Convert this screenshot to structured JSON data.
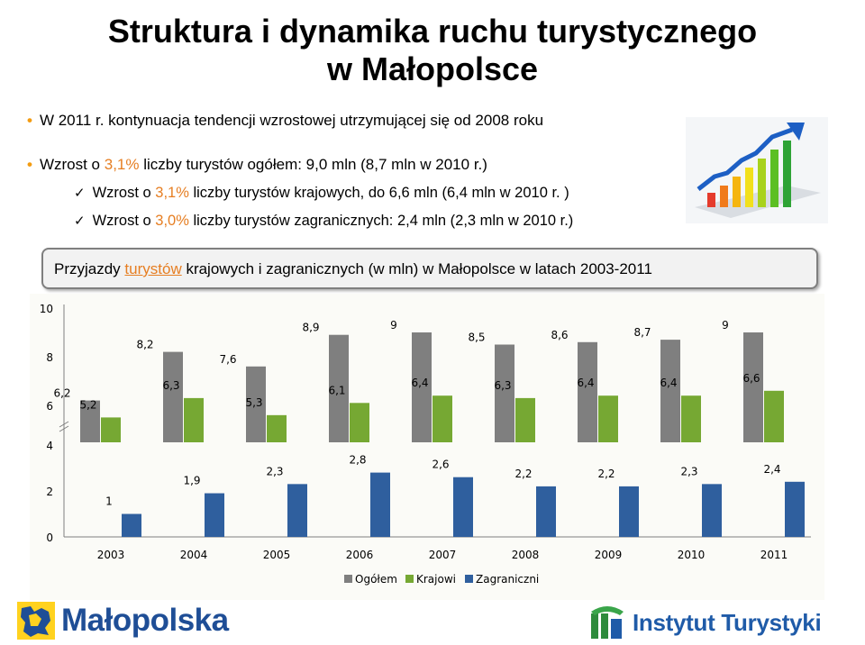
{
  "slide": {
    "title_line1": "Struktura i dynamika ruchu turystycznego",
    "title_line2": "w Małopolsce",
    "bullets": [
      {
        "text": "W 2011 r. kontynuacja tendencji wzrostowej utrzymującej się od 2008 roku"
      },
      {
        "pre": "Wzrost o ",
        "pct": "3,1%",
        "post": " liczby turystów ogółem: 9,0 mln (8,7 mln w 2010 r.)"
      }
    ],
    "checks": [
      {
        "pre": "Wzrost o ",
        "pct": "3,1%",
        "post": " liczby turystów krajowych, do 6,6 mln (6,4 mln w 2010 r. )"
      },
      {
        "pre": "Wzrost o ",
        "pct": "3,0%",
        "post": " liczby turystów zagranicznych: 2,4 mln (2,3 mln w 2010 r.)"
      }
    ],
    "bullet_char": "•",
    "check_char": "✓",
    "chart_heading_pre": "Przyjazdy ",
    "chart_heading_link": "turystów",
    "chart_heading_post": " krajowych i zagranicznych (w mln) w Małopolsce w latach 2003-2011",
    "logo_left_text": "Małopolska",
    "logo_right_text": "Instytut Turystyki"
  },
  "colors": {
    "total": "#7f7f7f",
    "domestic": "#76a833",
    "foreign": "#2f5f9e",
    "pct_accent": "#e67e22",
    "brand_blue": "#1f4e96"
  },
  "icons": [
    "growth-chart-icon",
    "malopolska-logo-icon",
    "instytut-turystyki-logo-icon"
  ],
  "chart_data": {
    "type": "bar",
    "categories": [
      "2003",
      "2004",
      "2005",
      "2006",
      "2007",
      "2008",
      "2009",
      "2010",
      "2011"
    ],
    "series": [
      {
        "name": "Ogółem",
        "values": [
          6.2,
          8.2,
          7.6,
          8.9,
          9,
          8.5,
          8.6,
          8.7,
          9
        ],
        "labels": [
          "6,2",
          "8,2",
          "7,6",
          "8,9",
          "9",
          "8,5",
          "8,6",
          "8,7",
          "9"
        ]
      },
      {
        "name": "Krajowi",
        "values": [
          5.2,
          6.3,
          5.3,
          6.1,
          6.4,
          6.3,
          6.4,
          6.4,
          6.6
        ],
        "labels": [
          "5,2",
          "6,3",
          "5,3",
          "6,1",
          "6,4",
          "6,3",
          "6,4",
          "6,4",
          "6,6"
        ]
      },
      {
        "name": "Zagraniczni",
        "values": [
          1,
          1.9,
          2.3,
          2.8,
          2.6,
          2.2,
          2.2,
          2.3,
          2.4
        ],
        "labels": [
          "1",
          "1,9",
          "2,3",
          "2,8",
          "2,6",
          "2,2",
          "2,2",
          "2,3",
          "2,4"
        ]
      }
    ],
    "y_ticks": [
      "0",
      "2",
      "4",
      "6",
      "8",
      "10"
    ],
    "axis_break": "between 4 and 6",
    "legend_position": "bottom"
  }
}
